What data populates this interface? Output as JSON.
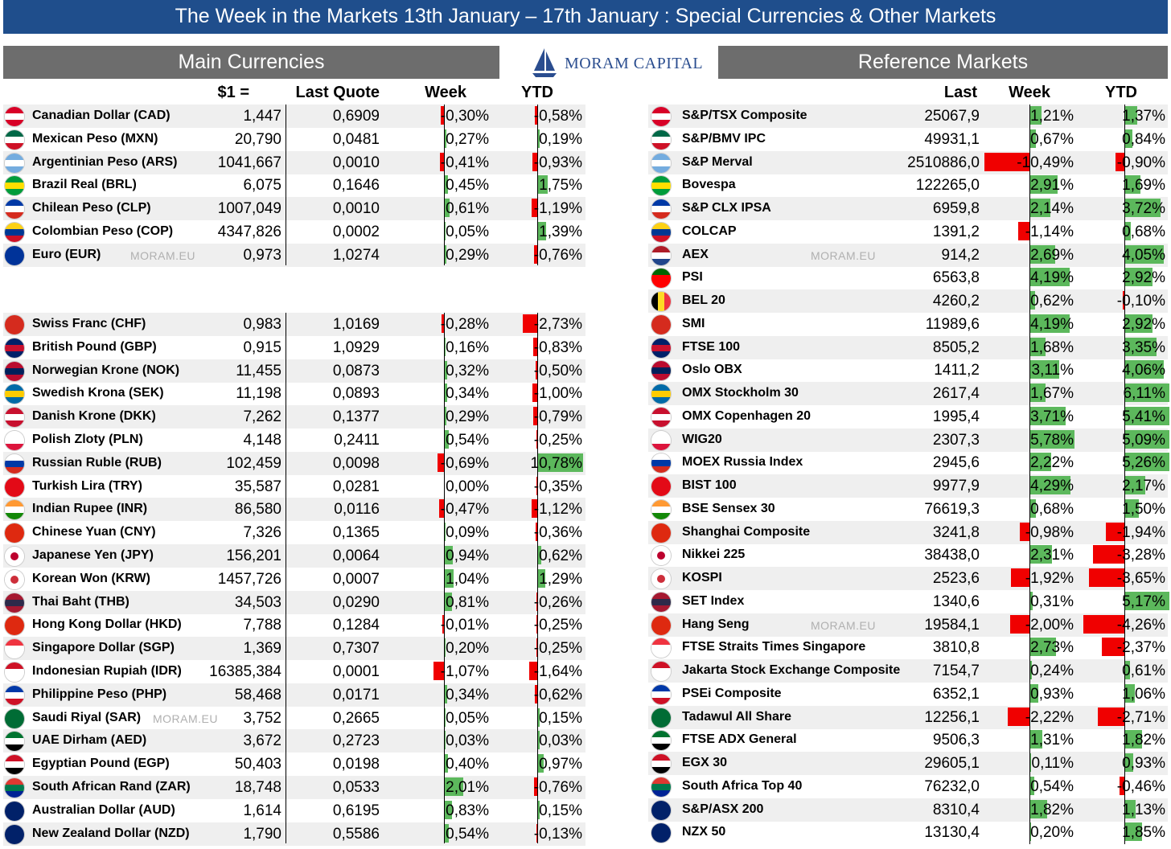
{
  "title": "The Week in the Markets 13th January – 17th January :  Special Currencies & Other Markets",
  "logo": {
    "text": "MORAM CAPITAL"
  },
  "watermark": "MORAM.EU",
  "currencies": {
    "header": "Main Currencies",
    "col_usd": "$1 =",
    "col_quote": "Last Quote",
    "col_week": "Week",
    "col_ytd": "YTD",
    "group1": [
      {
        "name": "Canadian Dollar (CAD)",
        "usd": "1,447",
        "quote": "0,6909",
        "week": "-0,30%",
        "week_v": -0.3,
        "ytd": "-0,58%",
        "ytd_v": -0.58,
        "flag": [
          "#d80027",
          "#ffffff",
          "#d80027"
        ]
      },
      {
        "name": "Mexican Peso (MXN)",
        "usd": "20,790",
        "quote": "0,0481",
        "week": "0,27%",
        "week_v": 0.27,
        "ytd": "0,19%",
        "ytd_v": 0.19,
        "flag": [
          "#006847",
          "#ffffff",
          "#ce1126"
        ]
      },
      {
        "name": "Argentinian Peso (ARS)",
        "usd": "1041,667",
        "quote": "0,0010",
        "week": "-0,41%",
        "week_v": -0.41,
        "ytd": "-0,93%",
        "ytd_v": -0.93,
        "flag": [
          "#74acdf",
          "#ffffff",
          "#74acdf"
        ]
      },
      {
        "name": "Brazil Real (BRL)",
        "usd": "6,075",
        "quote": "0,1646",
        "week": "0,45%",
        "week_v": 0.45,
        "ytd": "1,75%",
        "ytd_v": 1.75,
        "flag": [
          "#009c3b",
          "#ffdf00",
          "#009c3b"
        ]
      },
      {
        "name": "Chilean Peso (CLP)",
        "usd": "1007,049",
        "quote": "0,0010",
        "week": "0,61%",
        "week_v": 0.61,
        "ytd": "-1,19%",
        "ytd_v": -1.19,
        "flag": [
          "#0039a6",
          "#ffffff",
          "#d52b1e"
        ]
      },
      {
        "name": "Colombian Peso (COP)",
        "usd": "4347,826",
        "quote": "0,0002",
        "week": "0,05%",
        "week_v": 0.05,
        "ytd": "1,39%",
        "ytd_v": 1.39,
        "flag": [
          "#fcd116",
          "#003893",
          "#ce1126"
        ]
      },
      {
        "name": "Euro (EUR)",
        "usd": "0,973",
        "quote": "1,0274",
        "week": "0,29%",
        "week_v": 0.29,
        "ytd": "-0,76%",
        "ytd_v": -0.76,
        "flag": [
          "#003399",
          "#003399",
          "#003399"
        ],
        "wm": true
      }
    ],
    "group2": [
      {
        "name": "Swiss Franc (CHF)",
        "usd": "0,983",
        "quote": "1,0169",
        "week": "-0,28%",
        "week_v": -0.28,
        "ytd": "-2,73%",
        "ytd_v": -2.73,
        "flag": [
          "#d52b1e",
          "#d52b1e",
          "#d52b1e"
        ]
      },
      {
        "name": "British Pound (GBP)",
        "usd": "0,915",
        "quote": "1,0929",
        "week": "0,16%",
        "week_v": 0.16,
        "ytd": "-0,83%",
        "ytd_v": -0.83,
        "flag": [
          "#012169",
          "#c8102e",
          "#012169"
        ]
      },
      {
        "name": "Norwegian Krone (NOK)",
        "usd": "11,455",
        "quote": "0,0873",
        "week": "0,32%",
        "week_v": 0.32,
        "ytd": "-0,50%",
        "ytd_v": -0.5,
        "flag": [
          "#ba0c2f",
          "#00205b",
          "#ba0c2f"
        ]
      },
      {
        "name": "Swedish Krona (SEK)",
        "usd": "11,198",
        "quote": "0,0893",
        "week": "0,34%",
        "week_v": 0.34,
        "ytd": "-1,00%",
        "ytd_v": -1.0,
        "flag": [
          "#006aa7",
          "#fecc00",
          "#006aa7"
        ]
      },
      {
        "name": "Danish Krone (DKK)",
        "usd": "7,262",
        "quote": "0,1377",
        "week": "0,29%",
        "week_v": 0.29,
        "ytd": "-0,79%",
        "ytd_v": -0.79,
        "flag": [
          "#c8102e",
          "#ffffff",
          "#c8102e"
        ]
      },
      {
        "name": "Polish Zloty (PLN)",
        "usd": "4,148",
        "quote": "0,2411",
        "week": "0,54%",
        "week_v": 0.54,
        "ytd": "-0,25%",
        "ytd_v": -0.25,
        "flag": [
          "#ffffff",
          "#ffffff",
          "#dc143c"
        ]
      },
      {
        "name": "Russian Ruble (RUB)",
        "usd": "102,459",
        "quote": "0,0098",
        "week": "-0,69%",
        "week_v": -0.69,
        "ytd": "10,78%",
        "ytd_v": 10.78,
        "flag": [
          "#ffffff",
          "#0039a6",
          "#d52b1e"
        ]
      },
      {
        "name": "Turkish Lira (TRY)",
        "usd": "35,587",
        "quote": "0,0281",
        "week": "0,00%",
        "week_v": 0.0,
        "ytd": "-0,35%",
        "ytd_v": -0.35,
        "flag": [
          "#e30a17",
          "#e30a17",
          "#e30a17"
        ]
      },
      {
        "name": "Indian Rupee (INR)",
        "usd": "86,580",
        "quote": "0,0116",
        "week": "-0,47%",
        "week_v": -0.47,
        "ytd": "-1,12%",
        "ytd_v": -1.12,
        "flag": [
          "#ff9933",
          "#ffffff",
          "#138808"
        ]
      },
      {
        "name": "Chinese Yuan (CNY)",
        "usd": "7,326",
        "quote": "0,1365",
        "week": "0,09%",
        "week_v": 0.09,
        "ytd": "-0,36%",
        "ytd_v": -0.36,
        "flag": [
          "#de2910",
          "#de2910",
          "#de2910"
        ]
      },
      {
        "name": "Japanese Yen (JPY)",
        "usd": "156,201",
        "quote": "0,0064",
        "week": "0,94%",
        "week_v": 0.94,
        "ytd": "0,62%",
        "ytd_v": 0.62,
        "flag": [
          "#ffffff",
          "#ffffff",
          "#ffffff"
        ],
        "dot": "#bc002d"
      },
      {
        "name": "Korean Won (KRW)",
        "usd": "1457,726",
        "quote": "0,0007",
        "week": "1,04%",
        "week_v": 1.04,
        "ytd": "1,29%",
        "ytd_v": 1.29,
        "flag": [
          "#ffffff",
          "#ffffff",
          "#ffffff"
        ],
        "dot": "#cd2e3a"
      },
      {
        "name": "Thai Baht (THB)",
        "usd": "34,503",
        "quote": "0,0290",
        "week": "0,81%",
        "week_v": 0.81,
        "ytd": "-0,26%",
        "ytd_v": -0.26,
        "flag": [
          "#a51931",
          "#2d2a4a",
          "#a51931"
        ]
      },
      {
        "name": "Hong Kong Dollar (HKD)",
        "usd": "7,788",
        "quote": "0,1284",
        "week": "-0,01%",
        "week_v": -0.01,
        "ytd": "-0,25%",
        "ytd_v": -0.25,
        "flag": [
          "#de2910",
          "#de2910",
          "#de2910"
        ]
      },
      {
        "name": "Singapore Dollar (SGP)",
        "usd": "1,369",
        "quote": "0,7307",
        "week": "0,20%",
        "week_v": 0.2,
        "ytd": "-0,25%",
        "ytd_v": -0.25,
        "flag": [
          "#ef3340",
          "#ffffff",
          "#ffffff"
        ]
      },
      {
        "name": "Indonesian Rupiah (IDR)",
        "usd": "16385,384",
        "quote": "0,0001",
        "week": "-1,07%",
        "week_v": -1.07,
        "ytd": "-1,64%",
        "ytd_v": -1.64,
        "flag": [
          "#ce1126",
          "#ffffff",
          "#ffffff"
        ]
      },
      {
        "name": "Philippine Peso (PHP)",
        "usd": "58,468",
        "quote": "0,0171",
        "week": "0,34%",
        "week_v": 0.34,
        "ytd": "-0,62%",
        "ytd_v": -0.62,
        "flag": [
          "#0038a8",
          "#ffffff",
          "#ce1126"
        ]
      },
      {
        "name": "Saudi Riyal (SAR)",
        "usd": "3,752",
        "quote": "0,2665",
        "week": "0,05%",
        "week_v": 0.05,
        "ytd": "0,15%",
        "ytd_v": 0.15,
        "flag": [
          "#006c35",
          "#006c35",
          "#006c35"
        ],
        "wm": true
      },
      {
        "name": "UAE Dirham (AED)",
        "usd": "3,672",
        "quote": "0,2723",
        "week": "0,03%",
        "week_v": 0.03,
        "ytd": "0,03%",
        "ytd_v": 0.03,
        "flag": [
          "#00732f",
          "#ffffff",
          "#000000"
        ]
      },
      {
        "name": "Egyptian Pound (EGP)",
        "usd": "50,403",
        "quote": "0,0198",
        "week": "0,40%",
        "week_v": 0.4,
        "ytd": "0,97%",
        "ytd_v": 0.97,
        "flag": [
          "#ce1126",
          "#ffffff",
          "#000000"
        ]
      },
      {
        "name": "South African Rand (ZAR)",
        "usd": "18,748",
        "quote": "0,0533",
        "week": "2,01%",
        "week_v": 2.01,
        "ytd": "-0,76%",
        "ytd_v": -0.76,
        "flag": [
          "#de3831",
          "#007a4d",
          "#002395"
        ]
      },
      {
        "name": "Australian Dollar (AUD)",
        "usd": "1,614",
        "quote": "0,6195",
        "week": "0,83%",
        "week_v": 0.83,
        "ytd": "0,15%",
        "ytd_v": 0.15,
        "flag": [
          "#012169",
          "#012169",
          "#012169"
        ]
      },
      {
        "name": "New Zealand Dollar (NZD)",
        "usd": "1,790",
        "quote": "0,5586",
        "week": "0,54%",
        "week_v": 0.54,
        "ytd": "-0,13%",
        "ytd_v": -0.13,
        "flag": [
          "#012169",
          "#012169",
          "#012169"
        ]
      }
    ]
  },
  "markets": {
    "header": "Reference Markets",
    "col_last": "Last",
    "col_week": "Week",
    "col_ytd": "YTD",
    "rows": [
      {
        "name": "S&P/TSX Composite",
        "last": "25067,9",
        "week": "1,21%",
        "week_v": 1.21,
        "ytd": "1,37%",
        "ytd_v": 1.37,
        "flag": [
          "#d80027",
          "#ffffff",
          "#d80027"
        ]
      },
      {
        "name": "S&P/BMV IPC",
        "last": "49931,1",
        "week": "0,67%",
        "week_v": 0.67,
        "ytd": "0,84%",
        "ytd_v": 0.84,
        "flag": [
          "#006847",
          "#ffffff",
          "#ce1126"
        ]
      },
      {
        "name": "S&P Merval",
        "last": "2510886,0",
        "week": "-10,49%",
        "week_v": -10.49,
        "ytd": "-0,90%",
        "ytd_v": -0.9,
        "flag": [
          "#74acdf",
          "#ffffff",
          "#74acdf"
        ]
      },
      {
        "name": "Bovespa",
        "last": "122265,0",
        "week": "2,91%",
        "week_v": 2.91,
        "ytd": "1,69%",
        "ytd_v": 1.69,
        "flag": [
          "#009c3b",
          "#ffdf00",
          "#009c3b"
        ]
      },
      {
        "name": "S&P CLX IPSA",
        "last": "6959,8",
        "week": "2,14%",
        "week_v": 2.14,
        "ytd": "3,72%",
        "ytd_v": 3.72,
        "flag": [
          "#0039a6",
          "#ffffff",
          "#d52b1e"
        ]
      },
      {
        "name": "COLCAP",
        "last": "1391,2",
        "week": "-1,14%",
        "week_v": -1.14,
        "ytd": "0,68%",
        "ytd_v": 0.68,
        "flag": [
          "#fcd116",
          "#003893",
          "#ce1126"
        ]
      },
      {
        "name": "AEX",
        "last": "914,2",
        "week": "2,69%",
        "week_v": 2.69,
        "ytd": "4,05%",
        "ytd_v": 4.05,
        "flag": [
          "#ae1c28",
          "#ffffff",
          "#21468b"
        ],
        "wm": true
      },
      {
        "name": "PSI",
        "last": "6563,8",
        "week": "4,19%",
        "week_v": 4.19,
        "ytd": "2,92%",
        "ytd_v": 2.92,
        "flag": [
          "#006600",
          "#ff0000",
          "#ff0000"
        ]
      },
      {
        "name": "BEL 20",
        "last": "4260,2",
        "week": "0,62%",
        "week_v": 0.62,
        "ytd": "-0,10%",
        "ytd_v": -0.1,
        "flag": [
          "#000000",
          "#fdda24",
          "#ef3340"
        ],
        "vertical": true
      },
      {
        "name": "SMI",
        "last": "11989,6",
        "week": "4,19%",
        "week_v": 4.19,
        "ytd": "2,92%",
        "ytd_v": 2.92,
        "flag": [
          "#d52b1e",
          "#d52b1e",
          "#d52b1e"
        ]
      },
      {
        "name": "FTSE 100",
        "last": "8505,2",
        "week": "1,68%",
        "week_v": 1.68,
        "ytd": "3,35%",
        "ytd_v": 3.35,
        "flag": [
          "#012169",
          "#c8102e",
          "#012169"
        ]
      },
      {
        "name": "Oslo OBX",
        "last": "1411,2",
        "week": "3,11%",
        "week_v": 3.11,
        "ytd": "4,06%",
        "ytd_v": 4.06,
        "flag": [
          "#ba0c2f",
          "#00205b",
          "#ba0c2f"
        ]
      },
      {
        "name": "OMX Stockholm 30",
        "last": "2617,4",
        "week": "1,67%",
        "week_v": 1.67,
        "ytd": "6,11%",
        "ytd_v": 6.11,
        "flag": [
          "#006aa7",
          "#fecc00",
          "#006aa7"
        ]
      },
      {
        "name": "OMX Copenhagen 20",
        "last": "1995,4",
        "week": "3,71%",
        "week_v": 3.71,
        "ytd": "5,41%",
        "ytd_v": 5.41,
        "flag": [
          "#c8102e",
          "#ffffff",
          "#c8102e"
        ]
      },
      {
        "name": "WIG20",
        "last": "2307,3",
        "week": "5,78%",
        "week_v": 5.78,
        "ytd": "5,09%",
        "ytd_v": 5.09,
        "flag": [
          "#ffffff",
          "#ffffff",
          "#dc143c"
        ]
      },
      {
        "name": "MOEX Russia Index",
        "last": "2945,6",
        "week": "2,22%",
        "week_v": 2.22,
        "ytd": "5,26%",
        "ytd_v": 5.26,
        "flag": [
          "#ffffff",
          "#0039a6",
          "#d52b1e"
        ]
      },
      {
        "name": "BIST 100",
        "last": "9977,9",
        "week": "4,29%",
        "week_v": 4.29,
        "ytd": "2,17%",
        "ytd_v": 2.17,
        "flag": [
          "#e30a17",
          "#e30a17",
          "#e30a17"
        ]
      },
      {
        "name": "BSE Sensex 30",
        "last": "76619,3",
        "week": "0,68%",
        "week_v": 0.68,
        "ytd": "1,50%",
        "ytd_v": 1.5,
        "flag": [
          "#ff9933",
          "#ffffff",
          "#138808"
        ]
      },
      {
        "name": "Shanghai Composite",
        "last": "3241,8",
        "week": "-0,98%",
        "week_v": -0.98,
        "ytd": "-1,94%",
        "ytd_v": -1.94,
        "flag": [
          "#de2910",
          "#de2910",
          "#de2910"
        ]
      },
      {
        "name": "Nikkei 225",
        "last": "38438,0",
        "week": "2,31%",
        "week_v": 2.31,
        "ytd": "-3,28%",
        "ytd_v": -3.28,
        "flag": [
          "#ffffff",
          "#ffffff",
          "#ffffff"
        ],
        "dot": "#bc002d"
      },
      {
        "name": "KOSPI",
        "last": "2523,6",
        "week": "-1,92%",
        "week_v": -1.92,
        "ytd": "-3,65%",
        "ytd_v": -3.65,
        "flag": [
          "#ffffff",
          "#ffffff",
          "#ffffff"
        ],
        "dot": "#cd2e3a"
      },
      {
        "name": "SET Index",
        "last": "1340,6",
        "week": "0,31%",
        "week_v": 0.31,
        "ytd": "5,17%",
        "ytd_v": 5.17,
        "flag": [
          "#a51931",
          "#2d2a4a",
          "#a51931"
        ]
      },
      {
        "name": "Hang Seng",
        "last": "19584,1",
        "week": "-2,00%",
        "week_v": -2.0,
        "ytd": "-4,26%",
        "ytd_v": -4.26,
        "flag": [
          "#de2910",
          "#de2910",
          "#de2910"
        ],
        "wm": true
      },
      {
        "name": "FTSE Straits Times Singapore",
        "last": "3810,8",
        "week": "2,73%",
        "week_v": 2.73,
        "ytd": "-2,37%",
        "ytd_v": -2.37,
        "flag": [
          "#ef3340",
          "#ffffff",
          "#ffffff"
        ]
      },
      {
        "name": "Jakarta Stock Exchange Composite",
        "last": "7154,7",
        "week": "0,24%",
        "week_v": 0.24,
        "ytd": "0,61%",
        "ytd_v": 0.61,
        "flag": [
          "#ce1126",
          "#ffffff",
          "#ffffff"
        ]
      },
      {
        "name": "PSEi Composite",
        "last": "6352,1",
        "week": "0,93%",
        "week_v": 0.93,
        "ytd": "1,06%",
        "ytd_v": 1.06,
        "flag": [
          "#0038a8",
          "#ffffff",
          "#ce1126"
        ]
      },
      {
        "name": "Tadawul All Share",
        "last": "12256,1",
        "week": "-2,22%",
        "week_v": -2.22,
        "ytd": "-2,71%",
        "ytd_v": -2.71,
        "flag": [
          "#006c35",
          "#006c35",
          "#006c35"
        ]
      },
      {
        "name": "FTSE ADX General",
        "last": "9506,3",
        "week": "1,31%",
        "week_v": 1.31,
        "ytd": "1,82%",
        "ytd_v": 1.82,
        "flag": [
          "#00732f",
          "#ffffff",
          "#000000"
        ]
      },
      {
        "name": "EGX 30",
        "last": "29605,1",
        "week": "0,11%",
        "week_v": 0.11,
        "ytd": "0,93%",
        "ytd_v": 0.93,
        "flag": [
          "#ce1126",
          "#ffffff",
          "#000000"
        ]
      },
      {
        "name": "South Africa Top 40",
        "last": "76232,0",
        "week": "0,54%",
        "week_v": 0.54,
        "ytd": "-0,46%",
        "ytd_v": -0.46,
        "flag": [
          "#de3831",
          "#007a4d",
          "#002395"
        ]
      },
      {
        "name": "S&P/ASX 200",
        "last": "8310,4",
        "week": "1,82%",
        "week_v": 1.82,
        "ytd": "1,13%",
        "ytd_v": 1.13,
        "flag": [
          "#012169",
          "#012169",
          "#012169"
        ]
      },
      {
        "name": "NZX 50",
        "last": "13130,4",
        "week": "0,20%",
        "week_v": 0.2,
        "ytd": "1,85%",
        "ytd_v": 1.85,
        "flag": [
          "#012169",
          "#012169",
          "#012169"
        ]
      }
    ]
  }
}
